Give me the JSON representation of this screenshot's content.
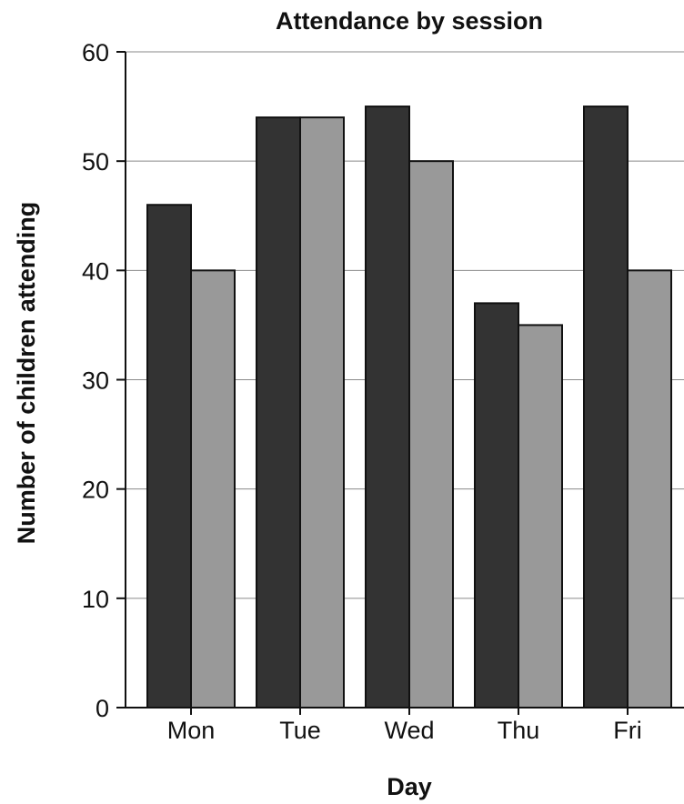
{
  "chart_data": {
    "type": "bar",
    "title": "Attendance by session",
    "xlabel": "Day",
    "ylabel": "Number of children attending",
    "categories": [
      "Mon",
      "Tue",
      "Wed",
      "Thu",
      "Fri"
    ],
    "series": [
      {
        "values": [
          46,
          54,
          55,
          37,
          55
        ],
        "color": "#333333"
      },
      {
        "values": [
          40,
          54,
          50,
          35,
          40
        ],
        "color": "#999999"
      }
    ],
    "ylim": [
      0,
      60
    ],
    "yticks": [
      0,
      10,
      20,
      30,
      40,
      50,
      60
    ],
    "grid": true,
    "legend": "none"
  }
}
